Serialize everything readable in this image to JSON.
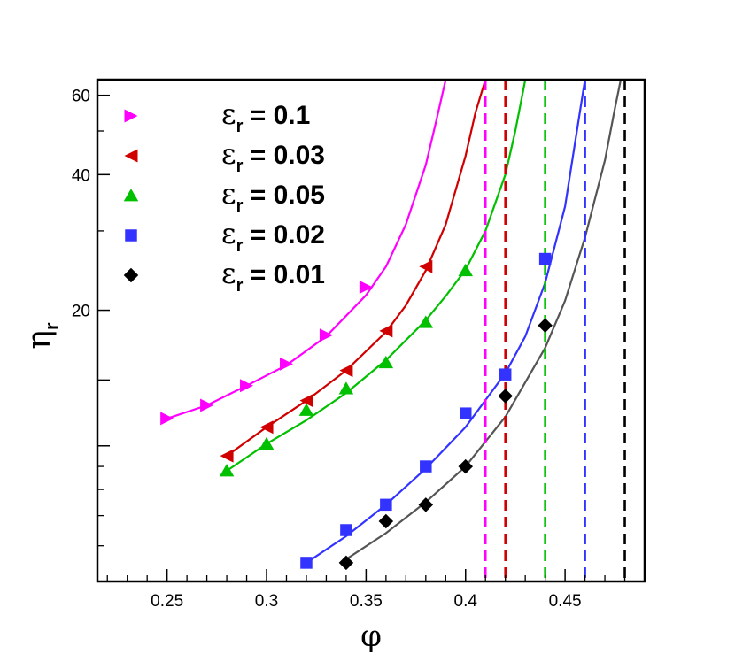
{
  "chart_data": {
    "type": "scatter",
    "xlabel": "φ",
    "ylabel": "η",
    "ylabel_sub": "r",
    "xlim": [
      0.215,
      0.49
    ],
    "ylim": [
      5,
      65
    ],
    "yscale": "log",
    "x_ticks": [
      0.25,
      0.3,
      0.35,
      0.4,
      0.45
    ],
    "x_tick_labels": [
      "0.25",
      "0.3",
      "0.35",
      "0.4",
      "0.45"
    ],
    "y_ticks_labeled": [
      20,
      40,
      60
    ],
    "y_tick_labels": [
      "20",
      "40",
      "60"
    ],
    "legend_position": "top-left",
    "grid": false,
    "series": [
      {
        "name": "ε",
        "name_sub": "r",
        "name_value": " = 0.1",
        "marker": "triangle-right",
        "color": "#ff00ff",
        "jamming_phi": 0.41,
        "points": [
          [
            0.25,
            11.5
          ],
          [
            0.27,
            12.3
          ],
          [
            0.29,
            13.6
          ],
          [
            0.31,
            15.2
          ],
          [
            0.33,
            17.6
          ],
          [
            0.35,
            22.5
          ]
        ],
        "fit": [
          [
            0.25,
            11.5
          ],
          [
            0.27,
            12.3
          ],
          [
            0.29,
            13.6
          ],
          [
            0.31,
            15.1
          ],
          [
            0.33,
            17.5
          ],
          [
            0.35,
            21.6
          ],
          [
            0.36,
            25
          ],
          [
            0.37,
            31
          ],
          [
            0.38,
            42
          ],
          [
            0.385,
            52
          ],
          [
            0.39,
            65
          ]
        ]
      },
      {
        "name": "ε",
        "name_sub": "r",
        "name_value": " = 0.03",
        "marker": "triangle-left",
        "color": "#d00000",
        "jamming_phi": 0.42,
        "points": [
          [
            0.28,
            9.5
          ],
          [
            0.3,
            11.0
          ],
          [
            0.32,
            12.6
          ],
          [
            0.34,
            14.7
          ],
          [
            0.36,
            18.0
          ],
          [
            0.38,
            25.0
          ]
        ],
        "fit": [
          [
            0.28,
            9.5
          ],
          [
            0.3,
            11.0
          ],
          [
            0.32,
            12.6
          ],
          [
            0.34,
            14.7
          ],
          [
            0.36,
            17.9
          ],
          [
            0.37,
            20.5
          ],
          [
            0.38,
            24.5
          ],
          [
            0.39,
            31
          ],
          [
            0.4,
            44
          ],
          [
            0.405,
            55
          ],
          [
            0.41,
            65
          ]
        ]
      },
      {
        "name": "ε",
        "name_sub": "r",
        "name_value": " = 0.05",
        "marker": "triangle-up",
        "color": "#00c000",
        "jamming_phi": 0.44,
        "points": [
          [
            0.28,
            8.8
          ],
          [
            0.3,
            10.1
          ],
          [
            0.32,
            12.0
          ],
          [
            0.34,
            13.4
          ],
          [
            0.36,
            15.3
          ],
          [
            0.38,
            18.8
          ],
          [
            0.4,
            24.5
          ]
        ],
        "fit": [
          [
            0.28,
            8.8
          ],
          [
            0.3,
            10.1
          ],
          [
            0.32,
            11.4
          ],
          [
            0.34,
            13.1
          ],
          [
            0.36,
            15.5
          ],
          [
            0.38,
            19.0
          ],
          [
            0.39,
            21.5
          ],
          [
            0.4,
            24.6
          ],
          [
            0.41,
            30
          ],
          [
            0.42,
            40
          ],
          [
            0.425,
            50
          ],
          [
            0.43,
            65
          ]
        ]
      },
      {
        "name": "ε",
        "name_sub": "r",
        "name_value": " = 0.02",
        "marker": "square",
        "color": "#3333ff",
        "jamming_phi": 0.46,
        "points": [
          [
            0.32,
            5.5
          ],
          [
            0.34,
            6.5
          ],
          [
            0.36,
            7.4
          ],
          [
            0.38,
            9.0
          ],
          [
            0.4,
            11.8
          ],
          [
            0.42,
            14.4
          ],
          [
            0.44,
            26.0
          ]
        ],
        "fit": [
          [
            0.32,
            5.5
          ],
          [
            0.34,
            6.3
          ],
          [
            0.36,
            7.4
          ],
          [
            0.38,
            8.9
          ],
          [
            0.4,
            11.0
          ],
          [
            0.42,
            14.5
          ],
          [
            0.43,
            17.5
          ],
          [
            0.44,
            23.0
          ],
          [
            0.45,
            34
          ],
          [
            0.455,
            47
          ],
          [
            0.46,
            65
          ]
        ]
      },
      {
        "name": "ε",
        "name_sub": "r",
        "name_value": " = 0.01",
        "marker": "diamond",
        "color": "#000000",
        "jamming_phi": 0.48,
        "points": [
          [
            0.34,
            5.5
          ],
          [
            0.36,
            6.8
          ],
          [
            0.38,
            7.4
          ],
          [
            0.4,
            9.0
          ],
          [
            0.42,
            12.9
          ],
          [
            0.44,
            18.5
          ]
        ],
        "fit": [
          [
            0.34,
            5.6
          ],
          [
            0.36,
            6.4
          ],
          [
            0.38,
            7.5
          ],
          [
            0.4,
            9.0
          ],
          [
            0.42,
            11.6
          ],
          [
            0.44,
            16.5
          ],
          [
            0.45,
            21.0
          ],
          [
            0.46,
            29.0
          ],
          [
            0.47,
            43
          ],
          [
            0.475,
            56
          ],
          [
            0.478,
            65
          ]
        ],
        "fit_color": "#555555"
      }
    ]
  }
}
